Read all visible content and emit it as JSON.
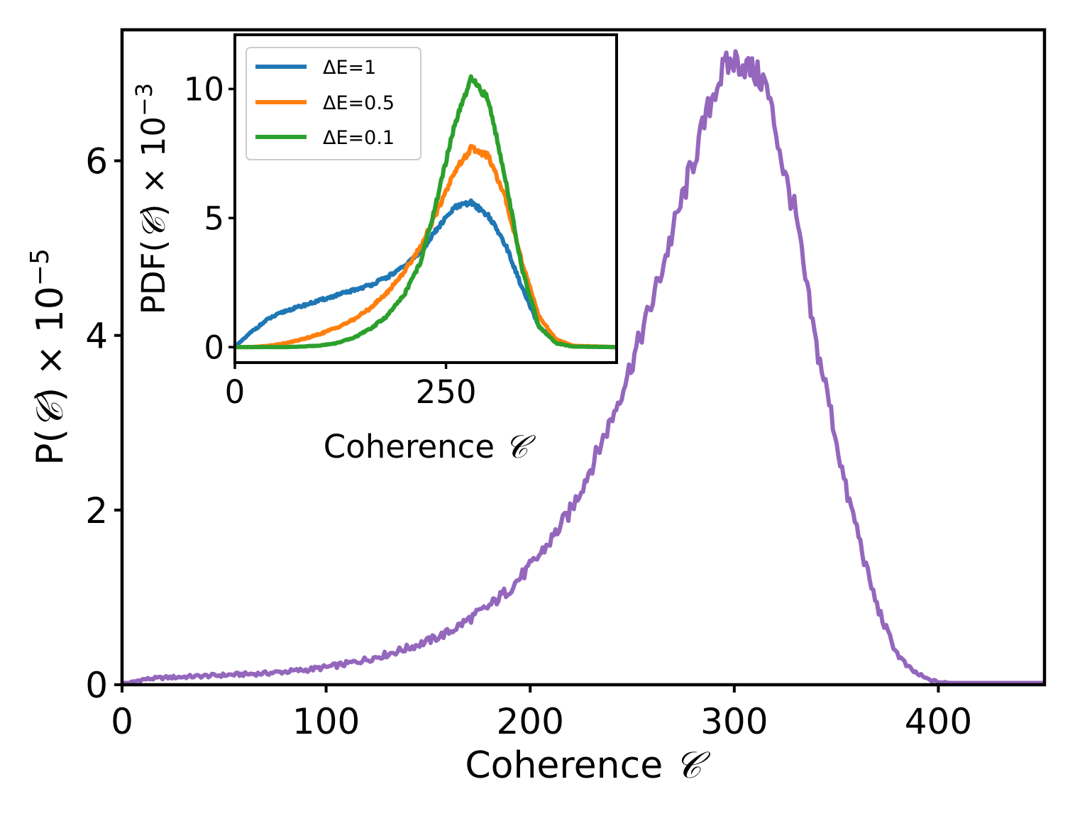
{
  "chart_data": [
    {
      "id": "main",
      "type": "line",
      "xlabel": "Coherence 𝒞",
      "xlabel_prefix": "Coherence ",
      "xlabel_symbol": "𝒞",
      "ylabel": "P(𝒞) × 10⁻⁵",
      "ylabel_prefix": "P(",
      "ylabel_symbol": "𝒞",
      "ylabel_suffix": ") × 10",
      "ylabel_exp": "−5",
      "xlim": [
        0,
        452
      ],
      "ylim": [
        0,
        7.5
      ],
      "xticks": [
        0,
        100,
        200,
        300,
        400
      ],
      "xtick_labels": [
        "0",
        "100",
        "200",
        "300",
        "400"
      ],
      "yticks": [
        0,
        2,
        4,
        6
      ],
      "ytick_labels": [
        "0",
        "2",
        "4",
        "6"
      ],
      "grid": false,
      "series": [
        {
          "color": "#9467bd",
          "x": [
            0,
            10,
            20,
            30,
            40,
            50,
            60,
            70,
            80,
            90,
            100,
            110,
            120,
            130,
            140,
            150,
            160,
            170,
            180,
            190,
            200,
            210,
            220,
            230,
            240,
            250,
            260,
            270,
            280,
            290,
            295,
            300,
            305,
            310,
            315,
            320,
            325,
            330,
            335,
            340,
            345,
            350,
            355,
            360,
            365,
            370,
            375,
            380,
            385,
            390,
            395,
            400,
            410,
            420,
            430,
            440,
            452
          ],
          "y": [
            0.0,
            0.06,
            0.08,
            0.09,
            0.1,
            0.11,
            0.12,
            0.13,
            0.15,
            0.17,
            0.2,
            0.24,
            0.29,
            0.35,
            0.42,
            0.5,
            0.6,
            0.75,
            0.9,
            1.1,
            1.35,
            1.65,
            2.0,
            2.5,
            3.05,
            3.7,
            4.4,
            5.2,
            6.0,
            6.8,
            7.05,
            7.15,
            7.1,
            7.0,
            6.9,
            6.4,
            5.8,
            5.4,
            4.6,
            3.9,
            3.4,
            2.8,
            2.2,
            1.8,
            1.3,
            0.9,
            0.6,
            0.35,
            0.2,
            0.12,
            0.06,
            0.03,
            0.01,
            0.0,
            0.0,
            0.0,
            0.0
          ]
        }
      ]
    },
    {
      "id": "inset",
      "type": "line",
      "xlabel": "Coherence 𝒞",
      "xlabel_prefix": "Coherence ",
      "xlabel_symbol": "𝒞",
      "ylabel": "PDF(𝒞) × 10⁻³",
      "ylabel_prefix": "PDF(",
      "ylabel_symbol": "𝒞",
      "ylabel_suffix": ") × 10",
      "ylabel_exp": "−3",
      "xlim": [
        0,
        452
      ],
      "ylim": [
        -0.6,
        12.1
      ],
      "xticks": [
        0,
        250
      ],
      "xtick_labels": [
        "0",
        "250"
      ],
      "yticks": [
        0,
        5,
        10
      ],
      "ytick_labels": [
        "0",
        "5",
        "10"
      ],
      "grid": false,
      "legend_position": "upper-left",
      "series": [
        {
          "name": "ΔE=1",
          "color": "#1f77b4",
          "x": [
            0,
            20,
            40,
            60,
            80,
            100,
            120,
            140,
            160,
            180,
            200,
            220,
            240,
            260,
            280,
            300,
            320,
            340,
            360,
            380,
            400,
            452
          ],
          "y": [
            0.0,
            0.6,
            1.1,
            1.4,
            1.6,
            1.8,
            2.0,
            2.2,
            2.4,
            2.7,
            3.1,
            3.7,
            4.6,
            5.4,
            5.6,
            5.1,
            4.0,
            2.3,
            0.8,
            0.2,
            0.03,
            0.0
          ]
        },
        {
          "name": "ΔE=0.5",
          "color": "#ff7f0e",
          "x": [
            0,
            20,
            40,
            60,
            80,
            100,
            120,
            140,
            160,
            180,
            200,
            220,
            240,
            260,
            280,
            300,
            320,
            340,
            360,
            380,
            400,
            452
          ],
          "y": [
            0.0,
            0.0,
            0.05,
            0.15,
            0.3,
            0.5,
            0.75,
            1.05,
            1.5,
            2.1,
            2.9,
            3.9,
            5.3,
            6.8,
            7.7,
            7.4,
            5.8,
            3.3,
            1.2,
            0.3,
            0.05,
            0.0
          ]
        },
        {
          "name": "ΔE=0.1",
          "color": "#2ca02c",
          "x": [
            0,
            20,
            40,
            60,
            80,
            100,
            120,
            140,
            160,
            180,
            200,
            220,
            240,
            260,
            280,
            300,
            320,
            340,
            360,
            380,
            400,
            452
          ],
          "y": [
            0.0,
            0.0,
            0.0,
            0.0,
            0.02,
            0.06,
            0.15,
            0.35,
            0.7,
            1.2,
            2.0,
            3.3,
            5.8,
            8.6,
            10.4,
            9.6,
            6.6,
            3.0,
            0.8,
            0.15,
            0.02,
            0.0
          ]
        }
      ]
    }
  ]
}
